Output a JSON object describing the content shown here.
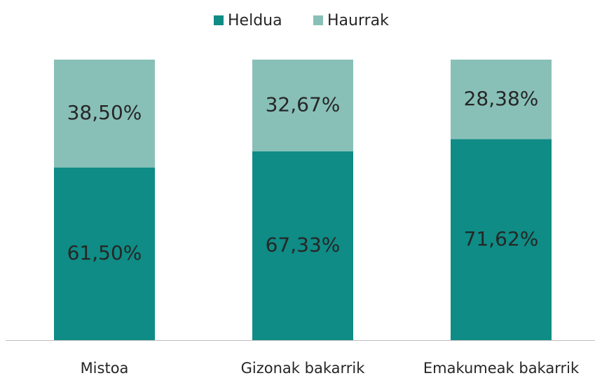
{
  "chart_data": {
    "type": "stacked_bar",
    "categories": [
      "Mistoa",
      "Gizonak bakarrik",
      "Emakumeak bakarrik"
    ],
    "series": [
      {
        "name": "Heldua",
        "color": "#0e8c85",
        "values": [
          61.5,
          67.33,
          71.62
        ],
        "value_labels": [
          "61,50%",
          "67,33%",
          "71,62%"
        ]
      },
      {
        "name": "Haurrak",
        "color": "#88c0b8",
        "values": [
          38.5,
          32.67,
          28.38
        ],
        "value_labels": [
          "38,50%",
          "32,67%",
          "28,38%"
        ]
      }
    ],
    "ylim": [
      0,
      100
    ],
    "legend": "top"
  }
}
